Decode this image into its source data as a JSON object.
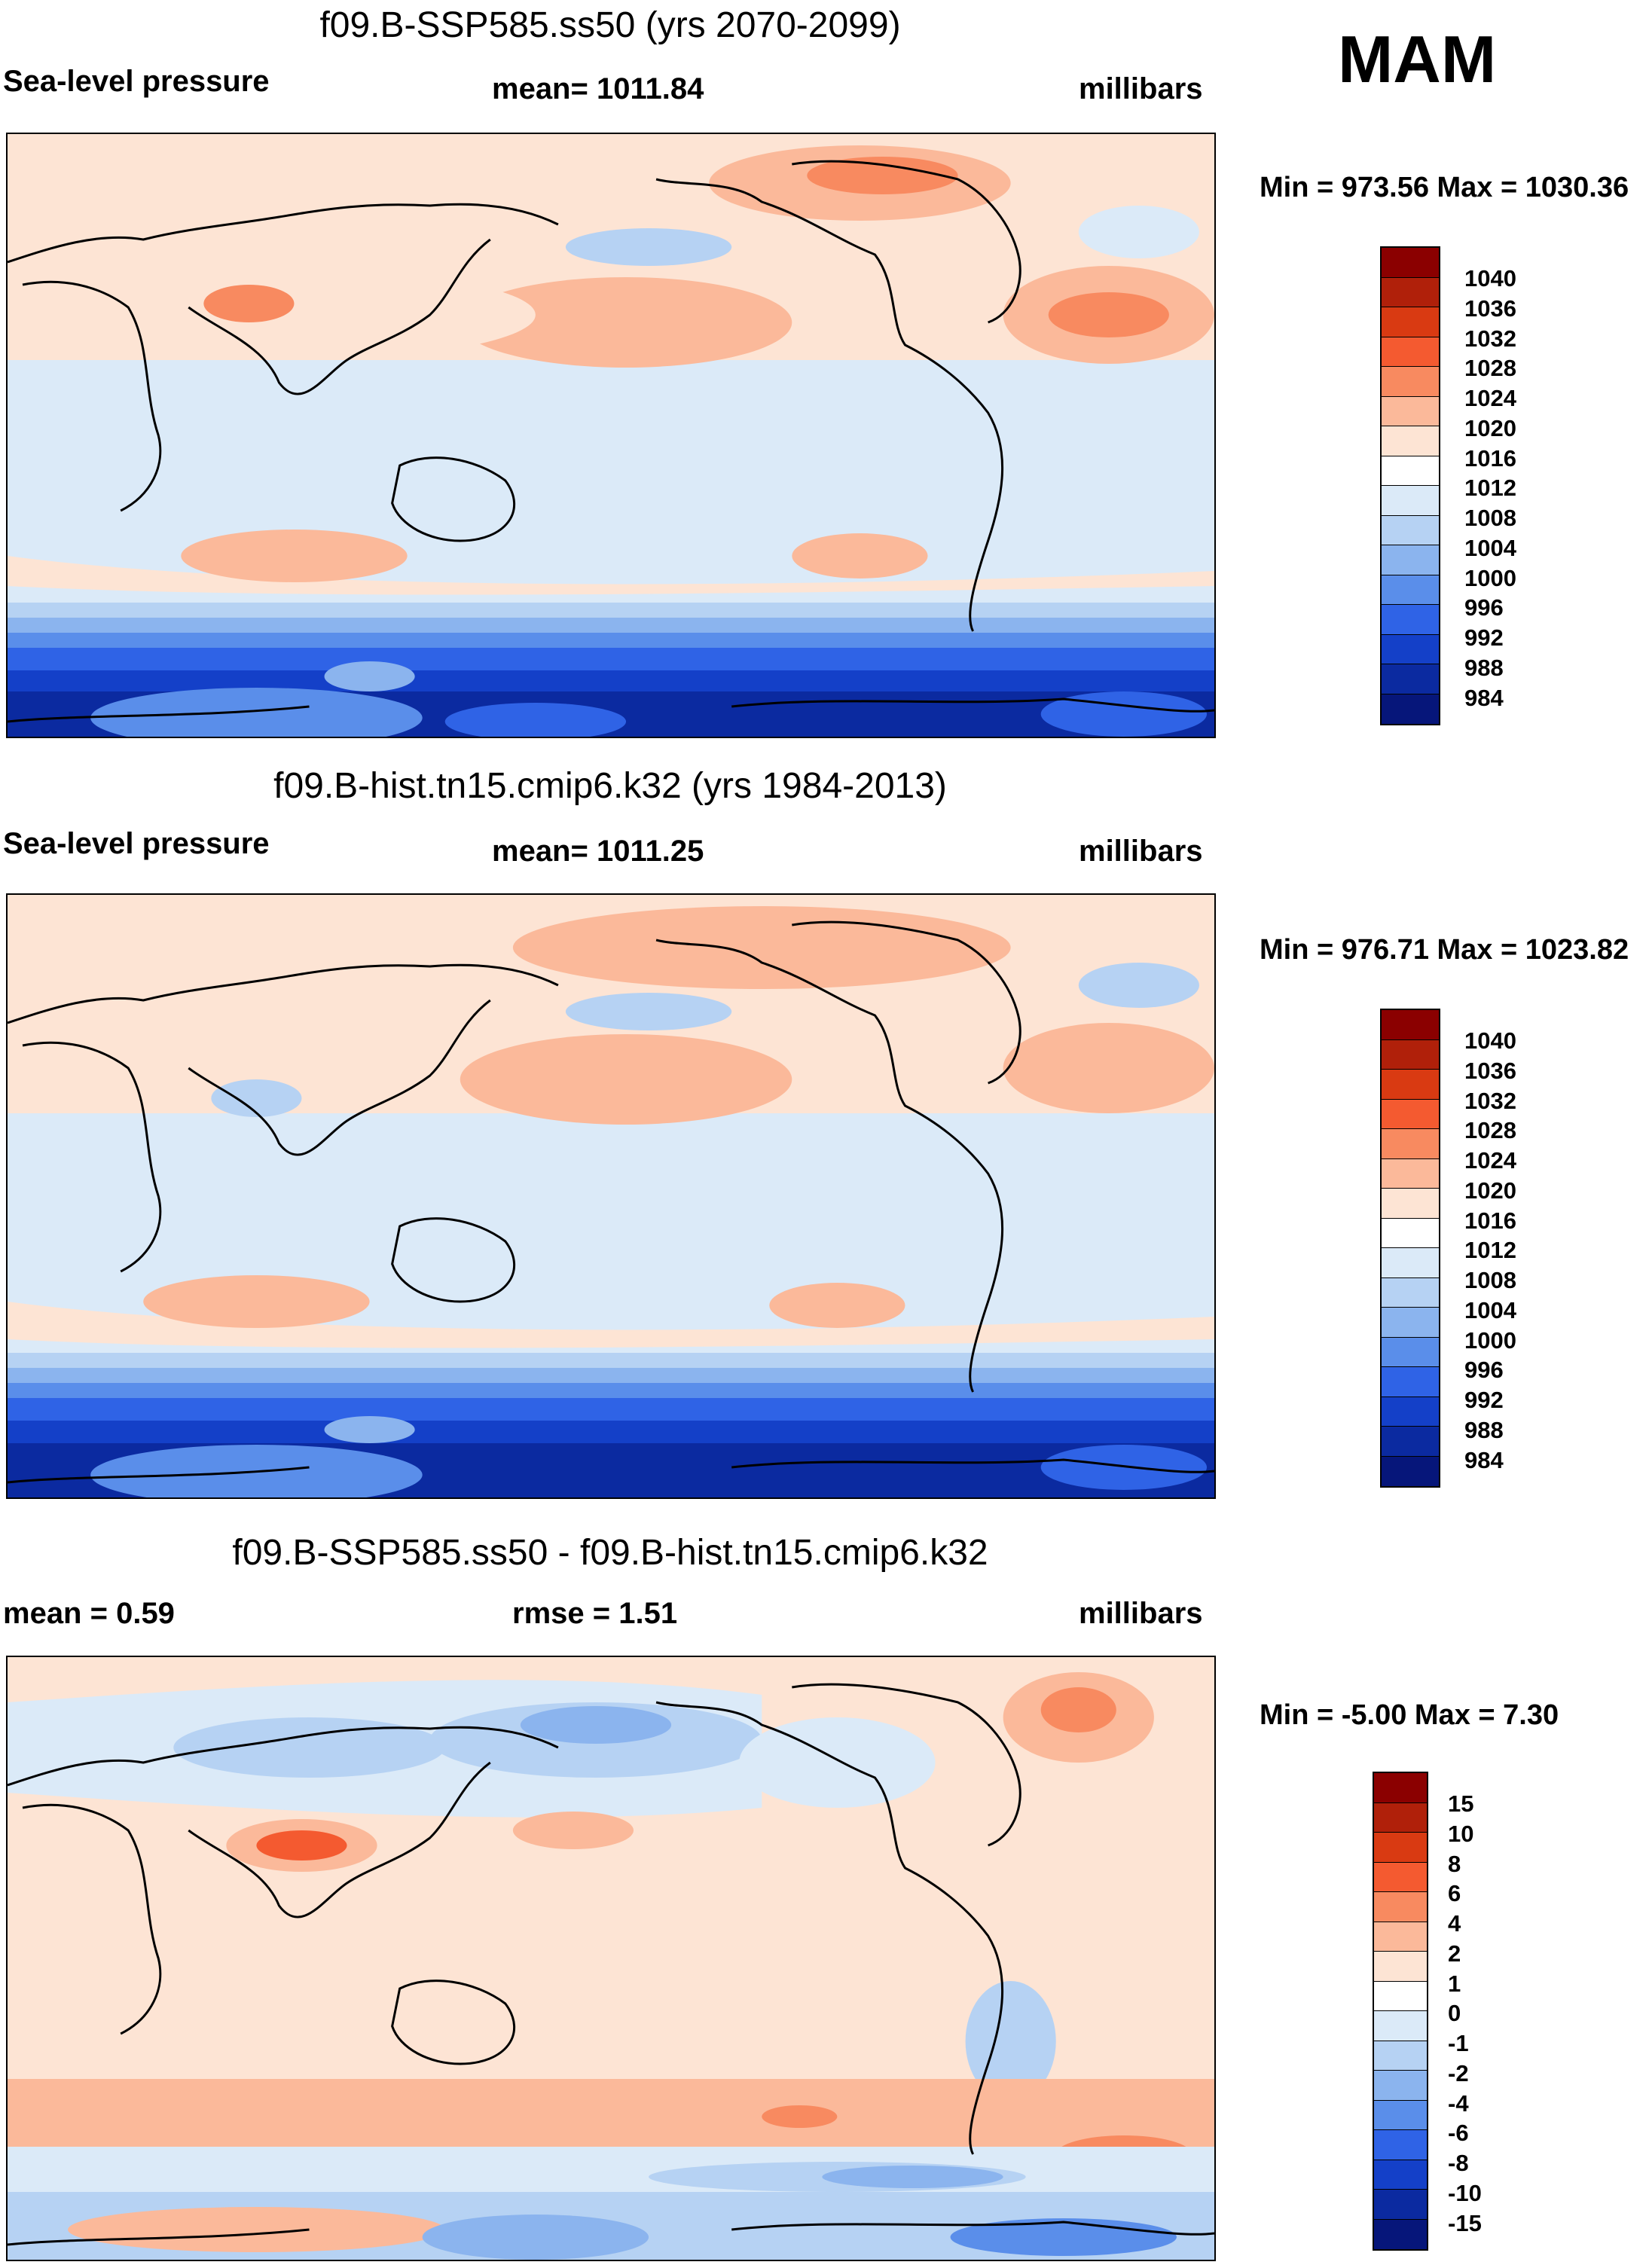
{
  "season": "MAM",
  "panels": [
    {
      "title": "f09.B-SSP585.ss50 (yrs 2070-2099)",
      "left_label": "Sea-level pressure",
      "center_label": "mean= 1011.84",
      "right_label": "millibars",
      "minmax": "Min = 973.56 Max = 1030.36",
      "colorbar_labels": [
        "1040",
        "1036",
        "1032",
        "1028",
        "1024",
        "1020",
        "1016",
        "1012",
        "1008",
        "1004",
        "1000",
        "996",
        "992",
        "988",
        "984"
      ]
    },
    {
      "title": "f09.B-hist.tn15.cmip6.k32 (yrs 1984-2013)",
      "left_label": "Sea-level pressure",
      "center_label": "mean= 1011.25",
      "right_label": "millibars",
      "minmax": "Min = 976.71 Max = 1023.82",
      "colorbar_labels": [
        "1040",
        "1036",
        "1032",
        "1028",
        "1024",
        "1020",
        "1016",
        "1012",
        "1008",
        "1004",
        "1000",
        "996",
        "992",
        "988",
        "984"
      ]
    },
    {
      "title": "f09.B-SSP585.ss50 - f09.B-hist.tn15.cmip6.k32",
      "left_label": "mean =   0.59",
      "center_label": "rmse =   1.51",
      "right_label": "millibars",
      "minmax": "Min =  -5.00 Max =   7.30",
      "colorbar_labels": [
        "15",
        "10",
        "8",
        "6",
        "4",
        "2",
        "1",
        "0",
        "-1",
        "-2",
        "-4",
        "-6",
        "-8",
        "-10",
        "-15"
      ]
    }
  ],
  "colors": {
    "scale": [
      "#8b0000",
      "#b0200a",
      "#d93a12",
      "#f45a30",
      "#f88a60",
      "#fbb99a",
      "#fde4d4",
      "#ffffff",
      "#dbeaf8",
      "#b6d2f3",
      "#8bb4ee",
      "#5a8eea",
      "#2f63e6",
      "#1440c8",
      "#0b2aa0",
      "#06167a"
    ],
    "land_line": "#000000"
  }
}
